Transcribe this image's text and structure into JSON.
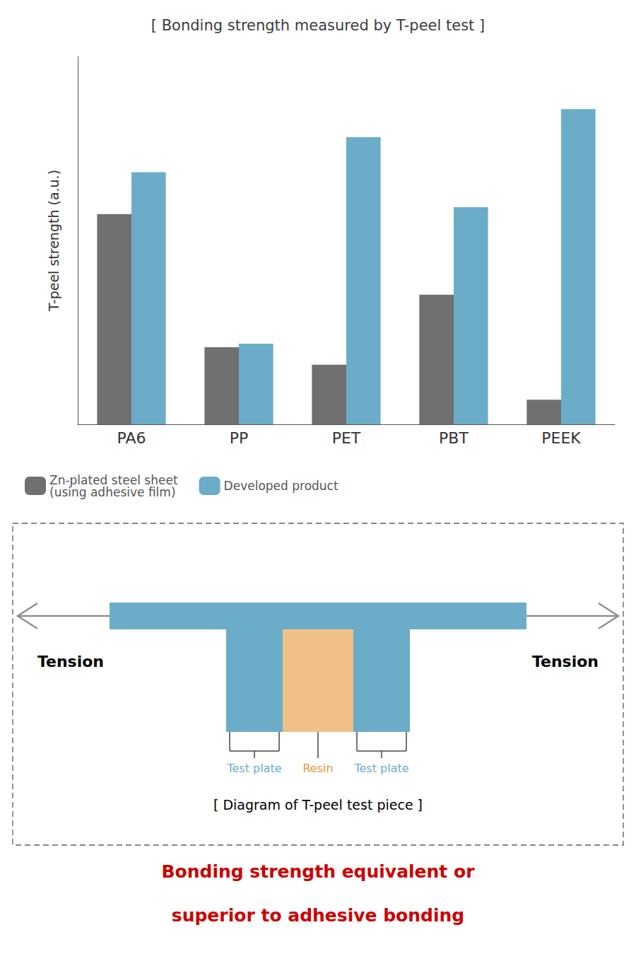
{
  "chart_data": {
    "type": "bar",
    "title": "[ Bonding strength measured by T-peel test ]",
    "y_label": "T-peel strength (a.u.)",
    "categories": [
      "PA6",
      "PP",
      "PET",
      "PBT",
      "PEEK"
    ],
    "series": [
      {
        "name": "Zn-plated steel sheet\n(using adhesive film)",
        "color": "#707070",
        "values": [
          0.6,
          0.22,
          0.17,
          0.37,
          0.07
        ]
      },
      {
        "name": "Developed product",
        "color": "#6BADC8",
        "values": [
          0.72,
          0.23,
          0.82,
          0.62,
          0.9
        ]
      }
    ],
    "ylim": [
      0,
      1.05
    ],
    "yticks": [],
    "tick_labels": "x",
    "grid": false,
    "legend": "bottom",
    "annotations": [
      {
        "text": "Tension",
        "color": "#000000"
      },
      {
        "text": "Tension",
        "color": "#000000"
      },
      {
        "text": "Test plate",
        "color": "#6BADC8"
      },
      {
        "text": "Resin",
        "color": "#E8963A"
      },
      {
        "text": "Test plate",
        "color": "#6BADC8"
      },
      {
        "text": "[ Diagram of T-peel test piece ]",
        "color": "#000000"
      },
      {
        "text": "Bonding strength equivalent or",
        "color": "#CC0000"
      },
      {
        "text": "superior to adhesive bonding",
        "color": "#CC0000"
      }
    ]
  }
}
